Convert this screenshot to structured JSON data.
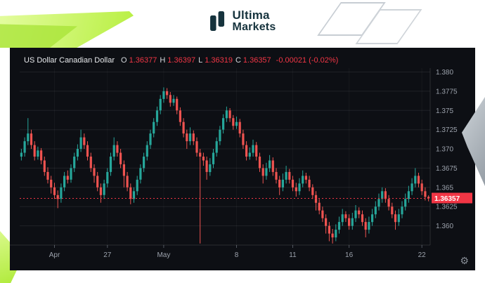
{
  "brand": {
    "line1": "Ultima",
    "line2": "Markets"
  },
  "chart": {
    "header": {
      "symbol": "US Dollar Canadian Dollar",
      "o_label": "O",
      "o_value": "1.36377",
      "h_label": "H",
      "h_value": "1.36397",
      "l_label": "L",
      "l_value": "1.36319",
      "c_label": "C",
      "c_value": "1.36357",
      "change": "-0.00021 (-0.02%)"
    },
    "price_badge": "1.36357",
    "colors": {
      "up": "#26a69a",
      "down": "#ef5350",
      "badge": "#f23645",
      "axis_text": "#9ba1ab",
      "grid": "rgba(255,255,255,0.08)",
      "bg": "#0d0f14"
    }
  },
  "controls": {
    "gear_icon": "⚙"
  },
  "chart_data": {
    "type": "candlestick",
    "title": "US Dollar Canadian Dollar",
    "last_ohlc": {
      "open": 1.36377,
      "high": 1.36397,
      "low": 1.36319,
      "close": 1.36357,
      "change": -0.00021,
      "change_pct": "-0.02%"
    },
    "ylim": [
      1.3575,
      1.3805
    ],
    "y_ticks": [
      1.38,
      1.3775,
      1.375,
      1.3725,
      1.37,
      1.3675,
      1.365,
      1.3625,
      1.36
    ],
    "y_tick_labels": [
      "1.380",
      "1.3775",
      "1.375",
      "1.3725",
      "1.370",
      "1.3675",
      "1.365",
      "1.3625",
      "1.360"
    ],
    "x_ticks": [
      {
        "label": "Apr",
        "index": 10
      },
      {
        "label": "27",
        "index": 26
      },
      {
        "label": "May",
        "index": 43
      },
      {
        "label": "8",
        "index": 65
      },
      {
        "label": "11",
        "index": 82
      },
      {
        "label": "16",
        "index": 99
      },
      {
        "label": "22",
        "index": 121
      }
    ],
    "last_price": 1.36357,
    "candles": [
      [
        1.369,
        1.37,
        1.3685,
        1.3695
      ],
      [
        1.3695,
        1.3715,
        1.369,
        1.371
      ],
      [
        1.371,
        1.374,
        1.3705,
        1.372
      ],
      [
        1.372,
        1.3725,
        1.37,
        1.3705
      ],
      [
        1.3705,
        1.371,
        1.3685,
        1.369
      ],
      [
        1.369,
        1.3703,
        1.3686,
        1.3698
      ],
      [
        1.3698,
        1.3701,
        1.368,
        1.3685
      ],
      [
        1.3685,
        1.369,
        1.3665,
        1.367
      ],
      [
        1.367,
        1.3676,
        1.3655,
        1.366
      ],
      [
        1.366,
        1.3665,
        1.3642,
        1.365
      ],
      [
        1.365,
        1.3656,
        1.3635,
        1.364
      ],
      [
        1.364,
        1.3646,
        1.3623,
        1.3635
      ],
      [
        1.3635,
        1.3655,
        1.363,
        1.365
      ],
      [
        1.365,
        1.367,
        1.3645,
        1.3665
      ],
      [
        1.3665,
        1.3672,
        1.3655,
        1.366
      ],
      [
        1.366,
        1.368,
        1.3656,
        1.3675
      ],
      [
        1.3675,
        1.3695,
        1.367,
        1.369
      ],
      [
        1.369,
        1.3706,
        1.3685,
        1.37
      ],
      [
        1.37,
        1.3725,
        1.3696,
        1.3715
      ],
      [
        1.3715,
        1.372,
        1.37,
        1.3705
      ],
      [
        1.3705,
        1.371,
        1.3685,
        1.369
      ],
      [
        1.369,
        1.3695,
        1.367,
        1.3675
      ],
      [
        1.3675,
        1.368,
        1.3656,
        1.3665
      ],
      [
        1.3665,
        1.367,
        1.3645,
        1.365
      ],
      [
        1.365,
        1.3655,
        1.363,
        1.364
      ],
      [
        1.364,
        1.366,
        1.3635,
        1.3655
      ],
      [
        1.3655,
        1.3675,
        1.365,
        1.367
      ],
      [
        1.367,
        1.3695,
        1.3665,
        1.369
      ],
      [
        1.369,
        1.3715,
        1.3685,
        1.3705
      ],
      [
        1.3705,
        1.371,
        1.369,
        1.3695
      ],
      [
        1.3695,
        1.37,
        1.3675,
        1.368
      ],
      [
        1.368,
        1.3685,
        1.365,
        1.3665
      ],
      [
        1.3665,
        1.367,
        1.3645,
        1.365
      ],
      [
        1.365,
        1.3655,
        1.3628,
        1.3635
      ],
      [
        1.3635,
        1.365,
        1.363,
        1.3645
      ],
      [
        1.3645,
        1.3665,
        1.364,
        1.366
      ],
      [
        1.366,
        1.368,
        1.3655,
        1.3675
      ],
      [
        1.3675,
        1.3695,
        1.367,
        1.369
      ],
      [
        1.369,
        1.371,
        1.3685,
        1.3705
      ],
      [
        1.3705,
        1.3725,
        1.37,
        1.372
      ],
      [
        1.372,
        1.374,
        1.3715,
        1.3735
      ],
      [
        1.3735,
        1.3755,
        1.373,
        1.375
      ],
      [
        1.375,
        1.377,
        1.3745,
        1.3765
      ],
      [
        1.3765,
        1.378,
        1.376,
        1.3775
      ],
      [
        1.3775,
        1.3779,
        1.3765,
        1.377
      ],
      [
        1.377,
        1.3774,
        1.3755,
        1.376
      ],
      [
        1.376,
        1.377,
        1.3756,
        1.3765
      ],
      [
        1.3765,
        1.3768,
        1.3745,
        1.375
      ],
      [
        1.375,
        1.3754,
        1.373,
        1.3735
      ],
      [
        1.3735,
        1.374,
        1.3715,
        1.372
      ],
      [
        1.372,
        1.3725,
        1.37,
        1.371
      ],
      [
        1.371,
        1.3728,
        1.3705,
        1.372
      ],
      [
        1.372,
        1.3724,
        1.3705,
        1.371
      ],
      [
        1.371,
        1.3715,
        1.369,
        1.3695
      ],
      [
        1.3695,
        1.37,
        1.3577,
        1.369
      ],
      [
        1.369,
        1.3695,
        1.3678,
        1.3685
      ],
      [
        1.3685,
        1.369,
        1.366,
        1.367
      ],
      [
        1.367,
        1.3688,
        1.3665,
        1.368
      ],
      [
        1.368,
        1.37,
        1.3675,
        1.3695
      ],
      [
        1.3695,
        1.3715,
        1.369,
        1.371
      ],
      [
        1.371,
        1.373,
        1.3705,
        1.3725
      ],
      [
        1.3725,
        1.3745,
        1.372,
        1.374
      ],
      [
        1.374,
        1.3755,
        1.3735,
        1.375
      ],
      [
        1.375,
        1.3753,
        1.3735,
        1.374
      ],
      [
        1.374,
        1.3744,
        1.3725,
        1.373
      ],
      [
        1.373,
        1.3742,
        1.3726,
        1.3735
      ],
      [
        1.3735,
        1.3739,
        1.3715,
        1.372
      ],
      [
        1.372,
        1.3725,
        1.37,
        1.3705
      ],
      [
        1.3705,
        1.371,
        1.3685,
        1.369
      ],
      [
        1.369,
        1.3702,
        1.3686,
        1.3695
      ],
      [
        1.3695,
        1.3712,
        1.369,
        1.3705
      ],
      [
        1.3705,
        1.3709,
        1.3685,
        1.369
      ],
      [
        1.369,
        1.3695,
        1.367,
        1.3675
      ],
      [
        1.3675,
        1.368,
        1.3655,
        1.3665
      ],
      [
        1.3665,
        1.3682,
        1.366,
        1.3675
      ],
      [
        1.3675,
        1.3692,
        1.367,
        1.3685
      ],
      [
        1.3685,
        1.3689,
        1.3665,
        1.367
      ],
      [
        1.367,
        1.3675,
        1.3655,
        1.366
      ],
      [
        1.366,
        1.3665,
        1.364,
        1.365
      ],
      [
        1.365,
        1.3668,
        1.3645,
        1.366
      ],
      [
        1.366,
        1.3678,
        1.3655,
        1.367
      ],
      [
        1.367,
        1.3674,
        1.3655,
        1.366
      ],
      [
        1.366,
        1.3665,
        1.3645,
        1.365
      ],
      [
        1.365,
        1.3656,
        1.3638,
        1.3645
      ],
      [
        1.3645,
        1.3662,
        1.364,
        1.3655
      ],
      [
        1.3655,
        1.3672,
        1.365,
        1.3665
      ],
      [
        1.3665,
        1.3669,
        1.3655,
        1.366
      ],
      [
        1.366,
        1.3665,
        1.3645,
        1.365
      ],
      [
        1.365,
        1.3654,
        1.3635,
        1.364
      ],
      [
        1.364,
        1.3645,
        1.362,
        1.363
      ],
      [
        1.363,
        1.3635,
        1.3615,
        1.362
      ],
      [
        1.362,
        1.3625,
        1.3605,
        1.361
      ],
      [
        1.361,
        1.3615,
        1.359,
        1.36
      ],
      [
        1.36,
        1.3605,
        1.358,
        1.359
      ],
      [
        1.359,
        1.3596,
        1.3577,
        1.3585
      ],
      [
        1.3585,
        1.3602,
        1.358,
        1.3595
      ],
      [
        1.3595,
        1.3612,
        1.359,
        1.3605
      ],
      [
        1.3605,
        1.3622,
        1.36,
        1.3615
      ],
      [
        1.3615,
        1.3619,
        1.3605,
        1.361
      ],
      [
        1.361,
        1.3615,
        1.3595,
        1.36
      ],
      [
        1.36,
        1.3617,
        1.3595,
        1.361
      ],
      [
        1.361,
        1.3627,
        1.3605,
        1.362
      ],
      [
        1.362,
        1.3624,
        1.361,
        1.3615
      ],
      [
        1.3615,
        1.362,
        1.36,
        1.3605
      ],
      [
        1.3605,
        1.361,
        1.3585,
        1.3595
      ],
      [
        1.3595,
        1.3612,
        1.359,
        1.3605
      ],
      [
        1.3605,
        1.3622,
        1.36,
        1.3615
      ],
      [
        1.3615,
        1.3632,
        1.361,
        1.3625
      ],
      [
        1.3625,
        1.3642,
        1.362,
        1.3635
      ],
      [
        1.3635,
        1.365,
        1.363,
        1.3645
      ],
      [
        1.3645,
        1.3649,
        1.363,
        1.3635
      ],
      [
        1.3635,
        1.364,
        1.362,
        1.3625
      ],
      [
        1.3625,
        1.363,
        1.361,
        1.3615
      ],
      [
        1.3615,
        1.362,
        1.3595,
        1.3605
      ],
      [
        1.3605,
        1.3622,
        1.36,
        1.3615
      ],
      [
        1.3615,
        1.3632,
        1.361,
        1.3625
      ],
      [
        1.3625,
        1.3642,
        1.362,
        1.3635
      ],
      [
        1.3635,
        1.3652,
        1.363,
        1.3645
      ],
      [
        1.3645,
        1.3662,
        1.364,
        1.3655
      ],
      [
        1.3655,
        1.3675,
        1.365,
        1.3665
      ],
      [
        1.3665,
        1.3669,
        1.365,
        1.3655
      ],
      [
        1.3655,
        1.366,
        1.364,
        1.3645
      ],
      [
        1.3645,
        1.365,
        1.3633,
        1.36377
      ],
      [
        1.36377,
        1.36397,
        1.36319,
        1.36357
      ]
    ]
  }
}
